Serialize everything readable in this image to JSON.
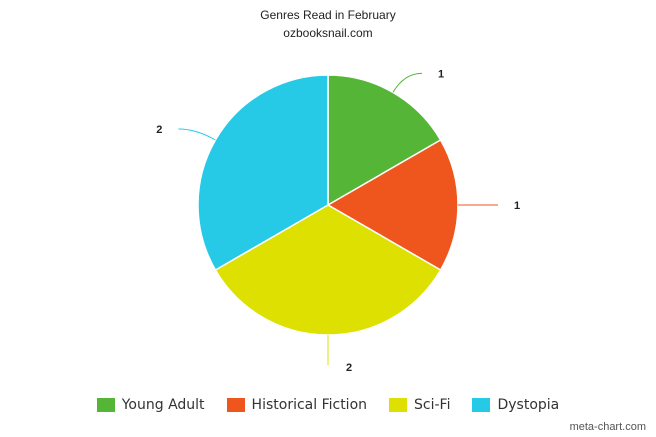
{
  "chart_data": {
    "type": "pie",
    "title": "Genres Read in February",
    "subtitle": "ozbooksnail.com",
    "categories": [
      "Young Adult",
      "Historical Fiction",
      "Sci-Fi",
      "Dystopia"
    ],
    "values": [
      1,
      1,
      2,
      2
    ],
    "colors": [
      "#55b536",
      "#ee561e",
      "#dde000",
      "#26cae6"
    ],
    "legend_position": "bottom"
  },
  "watermark": "meta-chart.com"
}
